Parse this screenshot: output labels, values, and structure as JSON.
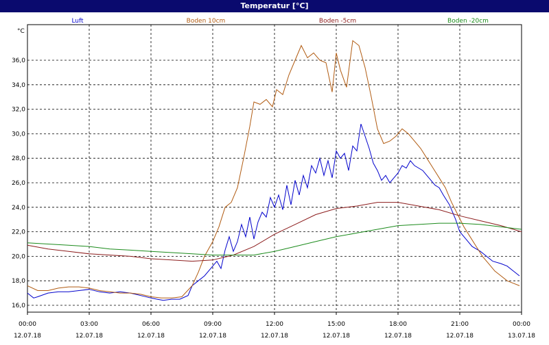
{
  "window": {
    "title": "Temperatur [°C]"
  },
  "chart_data": {
    "type": "line",
    "title": "Temperatur [°C]",
    "ylabel": "°C",
    "xlabel": "",
    "ylim": [
      15.4,
      38.2
    ],
    "yticks": [
      "16,0",
      "18,0",
      "20,0",
      "22,0",
      "24,0",
      "26,0",
      "28,0",
      "30,0",
      "32,0",
      "34,0",
      "36,0"
    ],
    "ytick_values": [
      16,
      18,
      20,
      22,
      24,
      26,
      28,
      30,
      32,
      34,
      36
    ],
    "xlim": [
      0,
      24
    ],
    "xticks": [
      {
        "time": "00:00",
        "date": "12.07.18"
      },
      {
        "time": "03:00",
        "date": "12.07.18"
      },
      {
        "time": "06:00",
        "date": "12.07.18"
      },
      {
        "time": "09:00",
        "date": "12.07.18"
      },
      {
        "time": "12:00",
        "date": "12.07.18"
      },
      {
        "time": "15:00",
        "date": "12.07.18"
      },
      {
        "time": "18:00",
        "date": "12.07.18"
      },
      {
        "time": "21:00",
        "date": "12.07.18"
      },
      {
        "time": "00:00",
        "date": "13.07.18"
      }
    ],
    "xtick_values": [
      0,
      3,
      6,
      9,
      12,
      15,
      18,
      21,
      24
    ],
    "grid": true,
    "legend_position": "top",
    "series": [
      {
        "name": "Luft",
        "color": "#0000cc",
        "x": [
          0,
          0.3,
          0.5,
          1,
          1.5,
          2,
          2.5,
          3,
          3.5,
          4,
          4.5,
          5,
          5.5,
          6,
          6.3,
          6.6,
          7,
          7.4,
          7.8,
          8,
          8.3,
          8.6,
          8.9,
          9.2,
          9.4,
          9.6,
          9.8,
          10,
          10.2,
          10.4,
          10.6,
          10.8,
          11,
          11.2,
          11.4,
          11.6,
          11.8,
          12,
          12.2,
          12.4,
          12.6,
          12.8,
          13,
          13.2,
          13.4,
          13.6,
          13.8,
          14,
          14.2,
          14.4,
          14.6,
          14.8,
          15,
          15.2,
          15.4,
          15.6,
          15.8,
          16,
          16.2,
          16.4,
          16.6,
          16.8,
          17,
          17.2,
          17.4,
          17.6,
          17.8,
          18,
          18.2,
          18.4,
          18.6,
          18.8,
          19,
          19.2,
          19.4,
          19.6,
          19.8,
          20,
          20.2,
          20.5,
          20.8,
          21,
          21.3,
          21.6,
          22,
          22.3,
          22.6,
          23,
          23.3,
          23.6,
          23.9
        ],
        "y": [
          17.0,
          16.6,
          16.7,
          17.0,
          17.1,
          17.1,
          17.2,
          17.3,
          17.1,
          17.0,
          17.1,
          17.0,
          16.8,
          16.6,
          16.5,
          16.4,
          16.5,
          16.5,
          16.8,
          17.6,
          18.0,
          18.4,
          19.0,
          19.6,
          19.0,
          20.5,
          21.6,
          20.4,
          21.2,
          22.6,
          21.6,
          23.2,
          21.4,
          22.8,
          23.6,
          23.2,
          24.8,
          24.0,
          25.0,
          23.8,
          25.8,
          24.2,
          26.2,
          25.0,
          26.6,
          25.6,
          27.4,
          26.8,
          28.0,
          26.6,
          27.8,
          26.4,
          28.6,
          28.0,
          28.4,
          27.0,
          29.0,
          28.6,
          30.8,
          29.8,
          28.8,
          27.6,
          27.0,
          26.2,
          26.6,
          26.0,
          26.4,
          26.8,
          27.4,
          27.2,
          27.8,
          27.4,
          27.2,
          27.0,
          26.6,
          26.2,
          25.8,
          25.6,
          25.0,
          24.2,
          23.0,
          22.0,
          21.4,
          20.8,
          20.4,
          20.0,
          19.6,
          19.4,
          19.2,
          18.8,
          18.4
        ]
      },
      {
        "name": "Boden 10cm",
        "color": "#b05a10",
        "x": [
          0,
          0.5,
          1,
          1.5,
          2,
          2.5,
          3,
          3.5,
          4,
          4.5,
          5,
          5.5,
          6,
          6.5,
          7,
          7.5,
          8,
          8.3,
          8.6,
          9,
          9.3,
          9.6,
          9.9,
          10.2,
          10.5,
          10.8,
          11,
          11.3,
          11.6,
          11.9,
          12.1,
          12.4,
          12.7,
          13,
          13.3,
          13.6,
          13.9,
          14.2,
          14.5,
          14.8,
          15,
          15.2,
          15.5,
          15.8,
          16.1,
          16.4,
          16.7,
          17,
          17.3,
          17.6,
          17.9,
          18.2,
          18.5,
          18.8,
          19.1,
          19.4,
          19.7,
          20,
          20.3,
          20.6,
          20.9,
          21.2,
          21.5,
          21.8,
          22.1,
          22.4,
          22.7,
          23,
          23.3,
          23.6,
          23.9
        ],
        "y": [
          17.6,
          17.2,
          17.2,
          17.4,
          17.5,
          17.5,
          17.4,
          17.2,
          17.1,
          17.0,
          17.0,
          16.9,
          16.7,
          16.6,
          16.6,
          16.7,
          17.6,
          18.7,
          20.0,
          21.2,
          22.4,
          24.0,
          24.4,
          25.6,
          28.0,
          30.6,
          32.6,
          32.4,
          32.8,
          32.2,
          33.6,
          33.2,
          34.8,
          36.0,
          37.2,
          36.2,
          36.6,
          36.0,
          35.8,
          33.4,
          36.6,
          35.2,
          33.8,
          37.6,
          37.2,
          35.4,
          33.0,
          30.4,
          29.2,
          29.4,
          29.8,
          30.4,
          30.0,
          29.4,
          28.8,
          28.0,
          27.2,
          26.4,
          25.6,
          24.4,
          23.4,
          22.4,
          21.6,
          20.8,
          20.0,
          19.4,
          18.8,
          18.4,
          18.0,
          17.8,
          17.6
        ]
      },
      {
        "name": "Boden -5cm",
        "color": "#8b1a1a",
        "x": [
          0,
          1,
          2,
          3,
          4,
          5,
          6,
          7,
          8,
          9,
          10,
          11,
          12,
          13,
          14,
          15,
          16,
          17,
          18,
          19,
          20,
          21,
          22,
          23,
          24
        ],
        "y": [
          20.9,
          20.6,
          20.4,
          20.2,
          20.1,
          20.0,
          19.8,
          19.7,
          19.6,
          19.7,
          20.1,
          20.8,
          21.8,
          22.6,
          23.4,
          23.9,
          24.1,
          24.4,
          24.4,
          24.1,
          23.8,
          23.3,
          22.9,
          22.5,
          22.0
        ]
      },
      {
        "name": "Boden -20cm",
        "color": "#1a8a1a",
        "x": [
          0,
          1,
          2,
          3,
          4,
          5,
          6,
          7,
          8,
          9,
          10,
          11,
          12,
          13,
          14,
          15,
          16,
          17,
          18,
          19,
          20,
          21,
          22,
          23,
          24
        ],
        "y": [
          21.1,
          21.0,
          20.9,
          20.8,
          20.6,
          20.5,
          20.4,
          20.3,
          20.2,
          20.1,
          20.1,
          20.1,
          20.4,
          20.8,
          21.2,
          21.6,
          21.9,
          22.2,
          22.5,
          22.6,
          22.7,
          22.7,
          22.6,
          22.4,
          22.2
        ]
      }
    ]
  }
}
